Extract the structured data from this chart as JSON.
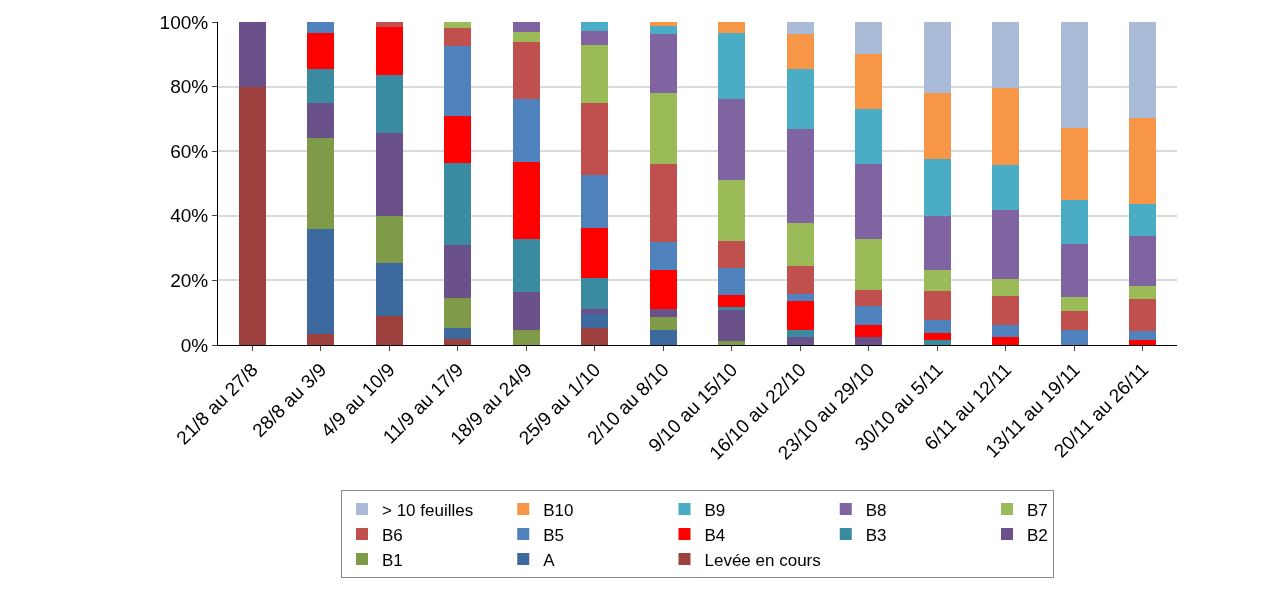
{
  "chart_data": {
    "type": "bar",
    "stacked": true,
    "categories": [
      "21/8 au 27/8",
      "28/8 au 3/9",
      "4/9 au 10/9",
      "11/9 au 17/9",
      "18/9 au 24/9",
      "25/9 au 1/10",
      "2/10 au 8/10",
      "9/10 au 15/10",
      "16/10 au 22/10",
      "23/10 au 29/10",
      "30/10 au 5/11",
      "6/11 au 12/11",
      "13/11 au 19/11",
      "20/11 au 26/11"
    ],
    "series": [
      {
        "name": "Levée en cours",
        "color": "#9e413e",
        "values": [
          80,
          3.5,
          9.1,
          1.9,
          null,
          5.4,
          null,
          null,
          null,
          null,
          null,
          null,
          null,
          null
        ]
      },
      {
        "name": "A",
        "color": "#3d6a9e",
        "values": [
          null,
          32.3,
          16.4,
          3.5,
          null,
          4.2,
          4.8,
          null,
          null,
          null,
          null,
          null,
          null,
          null
        ]
      },
      {
        "name": "B1",
        "color": "#7f9a48",
        "values": [
          null,
          28.4,
          14.5,
          9.1,
          4.5,
          null,
          3.8,
          1.2,
          null,
          null,
          null,
          null,
          null,
          null
        ]
      },
      {
        "name": "B2",
        "color": "#6a5189",
        "values": [
          20,
          10.8,
          25.5,
          16.4,
          11.9,
          1.5,
          2.4,
          9.5,
          2.4,
          2.5,
          null,
          null,
          null,
          null
        ]
      },
      {
        "name": "B3",
        "color": "#3b8ba0",
        "values": [
          null,
          10.6,
          18.1,
          25.3,
          16.3,
          9.7,
          null,
          1.0,
          2.4,
          null,
          1.4,
          null,
          null,
          null
        ]
      },
      {
        "name": "B4",
        "color": "#ff0000",
        "values": [
          null,
          10.9,
          14.7,
          14.7,
          23.9,
          15.3,
          12.1,
          3.8,
          8.7,
          3.6,
          2.4,
          2.4,
          null,
          1.5
        ]
      },
      {
        "name": "B5",
        "color": "#4f81bd",
        "values": [
          null,
          3.5,
          null,
          21.7,
          19.5,
          16.6,
          8.7,
          8.3,
          2.4,
          6.1,
          3.9,
          3.9,
          4.5,
          2.8
        ]
      },
      {
        "name": "B6",
        "color": "#c0504d",
        "values": [
          null,
          null,
          1.7,
          5.6,
          17.8,
          22.3,
          24.2,
          8.4,
          8.5,
          4.8,
          8.9,
          8.9,
          6.0,
          9.8
        ]
      },
      {
        "name": "B7",
        "color": "#9bbb59",
        "values": [
          null,
          null,
          null,
          1.8,
          3.1,
          18,
          22.1,
          18.9,
          13.5,
          15.9,
          6.5,
          5.1,
          4.5,
          4.3
        ]
      },
      {
        "name": "B8",
        "color": "#8064a2",
        "values": [
          null,
          null,
          null,
          null,
          3.0,
          4.1,
          18.1,
          25,
          29.1,
          23.1,
          16.7,
          21.4,
          16.4,
          15.4
        ]
      },
      {
        "name": "B9",
        "color": "#4bacc6",
        "values": [
          null,
          null,
          null,
          null,
          null,
          2.9,
          2.5,
          20.4,
          18.3,
          17.1,
          17.8,
          14,
          13.4,
          9.8
        ]
      },
      {
        "name": "B10",
        "color": "#f79646",
        "values": [
          null,
          null,
          null,
          null,
          null,
          null,
          1.3,
          3.5,
          10.9,
          17.1,
          20.4,
          24,
          22.3,
          26.7
        ]
      },
      {
        "name": "> 10 feuilles",
        "color": "#aabbd8",
        "values": [
          null,
          null,
          null,
          null,
          null,
          null,
          null,
          null,
          3.8,
          9.8,
          22,
          20.3,
          32.9,
          29.7
        ]
      }
    ],
    "ylim": [
      0,
      100
    ],
    "yticks": [
      {
        "value": 0,
        "label": "0%"
      },
      {
        "value": 20,
        "label": "20%"
      },
      {
        "value": 40,
        "label": "40%"
      },
      {
        "value": 60,
        "label": "60%"
      },
      {
        "value": 80,
        "label": "80%"
      },
      {
        "value": 100,
        "label": "100%"
      }
    ],
    "grid": "y",
    "legend": "bottom"
  }
}
